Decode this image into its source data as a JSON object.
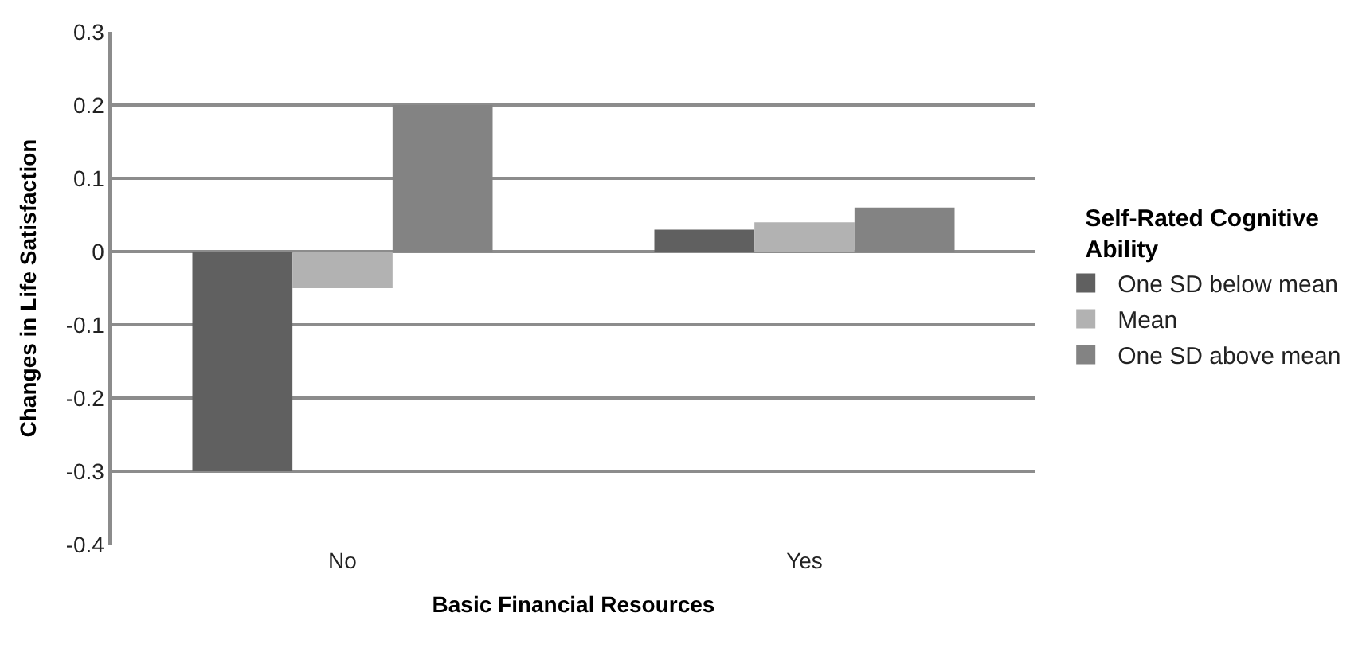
{
  "chart_data": {
    "type": "bar",
    "xlabel": "Basic Financial Resources",
    "ylabel": "Changes in Life Satisfaction",
    "legend_title": "Self-Rated Cognitive Ability",
    "categories": [
      "No",
      "Yes"
    ],
    "series": [
      {
        "name": "One SD below mean",
        "color": "#606060",
        "values": [
          -0.3,
          0.03
        ]
      },
      {
        "name": "Mean",
        "color": "#b2b2b2",
        "values": [
          -0.05,
          0.04
        ]
      },
      {
        "name": "One SD above mean",
        "color": "#838383",
        "values": [
          0.2,
          0.06
        ]
      }
    ],
    "ylim": [
      -0.4,
      0.3
    ],
    "yticks": [
      -0.4,
      -0.3,
      -0.2,
      -0.1,
      0,
      0.1,
      0.2,
      0.3
    ],
    "grid": "y",
    "legend": "right"
  }
}
